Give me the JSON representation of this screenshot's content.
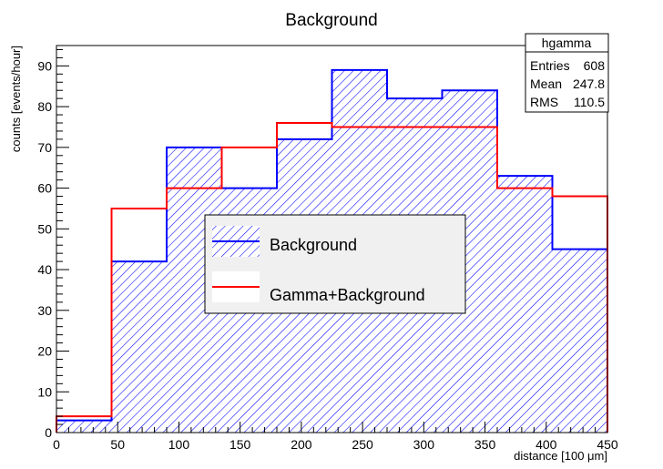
{
  "chart_data": {
    "type": "histogram",
    "title": "Background",
    "xlabel": "distance [100 μm]",
    "ylabel": "counts [events/hour]",
    "xlim": [
      0,
      450
    ],
    "ylim": [
      0,
      95
    ],
    "x_ticks": [
      0,
      50,
      100,
      150,
      200,
      250,
      300,
      350,
      400,
      450
    ],
    "y_ticks": [
      0,
      10,
      20,
      30,
      40,
      50,
      60,
      70,
      80,
      90
    ],
    "bin_edges": [
      0,
      45,
      90,
      135,
      180,
      225,
      270,
      315,
      360,
      405,
      450
    ],
    "grid": false,
    "series": [
      {
        "name": "Background",
        "style": "hatched",
        "color": "#0000ff",
        "values": [
          3,
          42,
          70,
          60,
          72,
          89,
          82,
          84,
          63,
          45
        ]
      },
      {
        "name": "Gamma+Background",
        "style": "line",
        "color": "#ff0000",
        "values": [
          4,
          55,
          60,
          70,
          76,
          75,
          75,
          75,
          60,
          58
        ]
      }
    ],
    "legend": {
      "placement": "center",
      "entries": [
        "Background",
        "Gamma+Background"
      ]
    },
    "stats_box": {
      "title": "hgamma",
      "rows": [
        {
          "label": "Entries",
          "value": "608"
        },
        {
          "label": "Mean",
          "value": "247.8"
        },
        {
          "label": "RMS",
          "value": "110.5"
        }
      ]
    }
  }
}
